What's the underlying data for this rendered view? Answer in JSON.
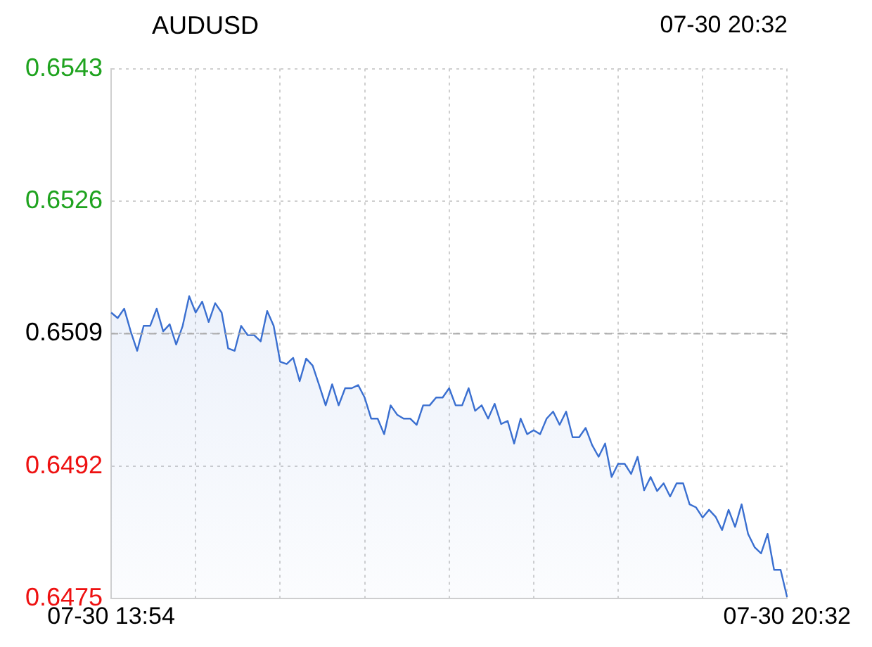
{
  "chart_data": {
    "type": "area",
    "title": "AUDUSD",
    "subtitle": "07-30 20:32",
    "categories": [
      "07-30 13:54",
      null,
      null,
      null,
      null,
      null,
      null,
      null,
      null,
      null,
      null,
      null,
      null,
      null,
      null,
      null,
      null,
      null,
      null,
      null,
      null,
      null,
      null,
      null,
      null,
      null,
      null,
      null,
      null,
      null,
      null,
      null,
      null,
      null,
      null,
      null,
      null,
      null,
      null,
      null,
      null,
      null,
      null,
      null,
      null,
      null,
      null,
      null,
      null,
      null,
      null,
      null,
      null,
      null,
      null,
      null,
      null,
      null,
      null,
      null,
      null,
      null,
      null,
      null,
      null,
      null,
      null,
      null,
      null,
      null,
      null,
      null,
      null,
      null,
      null,
      null,
      null,
      null,
      null,
      null,
      null,
      null,
      null,
      null,
      null,
      null,
      null,
      null,
      null,
      null,
      null,
      null,
      null,
      null,
      null,
      null,
      null,
      null,
      null,
      null,
      null,
      null,
      null,
      null,
      "07-30 20:32"
    ],
    "series": [
      {
        "color": "#3a6fd0",
        "values": [
          0.65117,
          0.6511,
          0.65122,
          0.65093,
          0.65068,
          0.651,
          0.651,
          0.65122,
          0.65093,
          0.65102,
          0.65076,
          0.651,
          0.65138,
          0.65117,
          0.65131,
          0.65105,
          0.65129,
          0.65117,
          0.65071,
          0.65068,
          0.651,
          0.65088,
          0.65088,
          0.6508,
          0.65119,
          0.651,
          0.65054,
          0.65051,
          0.65059,
          0.65029,
          0.65058,
          0.65049,
          0.65024,
          0.64998,
          0.65025,
          0.64998,
          0.6502,
          0.6502,
          0.65024,
          0.65008,
          0.64981,
          0.64981,
          0.64961,
          0.64998,
          0.64986,
          0.64981,
          0.64981,
          0.64973,
          0.64998,
          0.64998,
          0.65008,
          0.65008,
          0.6502,
          0.64998,
          0.64998,
          0.6502,
          0.64991,
          0.64998,
          0.64981,
          0.65,
          0.64974,
          0.64978,
          0.64949,
          0.64981,
          0.64961,
          0.64966,
          0.64961,
          0.64981,
          0.6499,
          0.64973,
          0.6499,
          0.64957,
          0.64957,
          0.64969,
          0.64947,
          0.64932,
          0.64949,
          0.64906,
          0.64923,
          0.64923,
          0.6491,
          0.64932,
          0.64889,
          0.64906,
          0.64888,
          0.64898,
          0.64881,
          0.64898,
          0.64898,
          0.64871,
          0.64867,
          0.64854,
          0.64864,
          0.64855,
          0.64838,
          0.64864,
          0.64842,
          0.64871,
          0.64833,
          0.64816,
          0.64808,
          0.64833,
          0.64787,
          0.64787,
          0.64752
        ]
      }
    ],
    "ylim": [
      0.6475,
      0.6543
    ],
    "yticks": [
      0.6475,
      0.6492,
      0.6509,
      0.6526,
      0.6543
    ],
    "ref_lines": [
      {
        "axis": "y",
        "value": 0.6509,
        "color": "#aaaaaa",
        "line_style": "dashed"
      }
    ],
    "grid": true,
    "legend": false
  }
}
